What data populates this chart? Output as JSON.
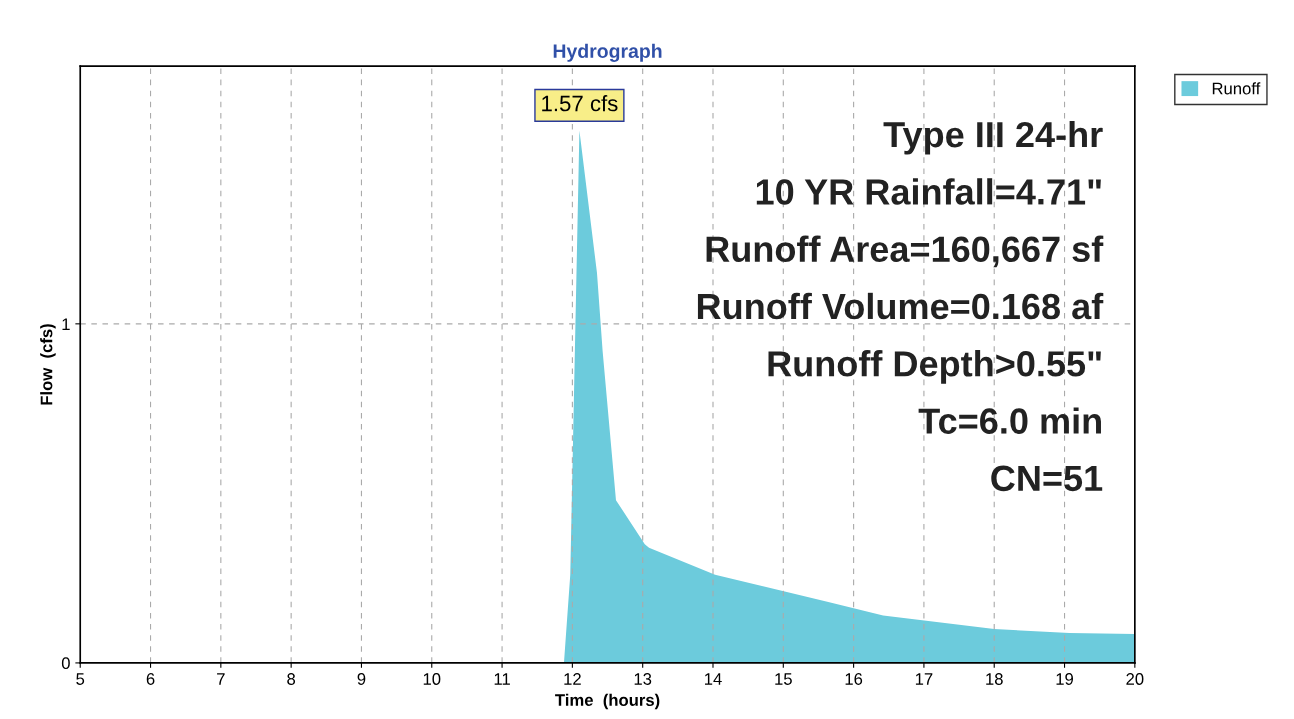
{
  "chart_data": {
    "type": "area",
    "title": "Hydrograph",
    "xlabel": "Time  (hours)",
    "ylabel": "Flow  (cfs)",
    "xlim": [
      5,
      20
    ],
    "xticks": [
      5,
      6,
      7,
      8,
      9,
      10,
      11,
      12,
      13,
      14,
      15,
      16,
      17,
      18,
      19,
      20
    ],
    "ylim": [
      0,
      1.76
    ],
    "yticks": [
      0,
      1
    ],
    "grid": true,
    "legend": "top right",
    "series": [
      {
        "name": "Runoff",
        "color": "#6ccbdc",
        "x": [
          5,
          11.88,
          11.97,
          12.1,
          12.35,
          12.43,
          12.62,
          13.03,
          13.09,
          14.03,
          15.64,
          16.42,
          18.0,
          19.07,
          20
        ],
        "values": [
          0,
          0,
          0.26,
          1.57,
          1.15,
          0.92,
          0.48,
          0.35,
          0.34,
          0.26,
          0.18,
          0.14,
          0.1,
          0.088,
          0.085
        ]
      }
    ],
    "annotations": [
      {
        "text": "1.57 cfs",
        "x": 12.1,
        "y": 1.57
      },
      "Type III 24-hr",
      "10 YR Rainfall=4.71\"",
      "Runoff Area=160,667 sf",
      "Runoff Volume=0.168 af",
      "Runoff Depth>0.55\"",
      "Tc=6.0 min",
      "CN=51"
    ]
  }
}
